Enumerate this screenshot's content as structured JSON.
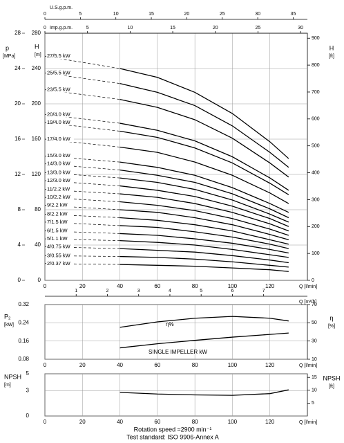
{
  "chart_data": [
    {
      "type": "line",
      "x": [
        0,
        40,
        60,
        80,
        100,
        120,
        130
      ],
      "xlim": [
        0,
        140
      ],
      "xticks": [
        0,
        20,
        40,
        60,
        80,
        100,
        120
      ],
      "x_label": "Q [l/min]",
      "y_label": "H",
      "y_unit": "[m]",
      "ylim": [
        0,
        280
      ],
      "yticks": [
        0,
        40,
        80,
        120,
        160,
        200,
        240,
        280
      ],
      "y2_label": "H",
      "y2_unit": "[ft]",
      "y2lim": [
        0,
        918.6
      ],
      "y2ticks": [
        0,
        100,
        200,
        300,
        400,
        500,
        600,
        700,
        800,
        900
      ],
      "p_axis": {
        "label": "p",
        "unit": "[MPa]",
        "lim": [
          0,
          28
        ],
        "ticks": [
          0,
          4,
          8,
          12,
          16,
          20,
          24,
          28
        ]
      },
      "top_axes": [
        {
          "label": "U.S.g.p.m.",
          "label_position": "left",
          "lim": [
            0,
            37
          ],
          "ticks": [
            0,
            5,
            10,
            15,
            20,
            25,
            30,
            35
          ]
        },
        {
          "label": "Imp.g.p.m.",
          "label_position": "left",
          "lim": [
            0,
            30.8
          ],
          "ticks": [
            0,
            5,
            10,
            15,
            20,
            25,
            30
          ]
        }
      ],
      "grid": true,
      "dashed_first_segment": true,
      "series": [
        {
          "name": "27/5.5 kW",
          "color": "#000",
          "values": [
            254,
            240,
            230,
            213,
            189,
            157,
            138
          ]
        },
        {
          "name": "25/5.5 kW",
          "color": "#000",
          "values": [
            235,
            223,
            213,
            198,
            175,
            145,
            128
          ]
        },
        {
          "name": "23/5.5 kW",
          "color": "#000",
          "values": [
            216,
            205,
            196,
            182,
            161,
            133,
            117
          ]
        },
        {
          "name": "20/4.0 kW",
          "color": "#000",
          "values": [
            188,
            178,
            170,
            158,
            140,
            116,
            102
          ]
        },
        {
          "name": "19/4.0 kW",
          "color": "#000",
          "values": [
            179,
            169,
            162,
            150,
            133,
            110,
            97
          ]
        },
        {
          "name": "17/4.0 kW",
          "color": "#000",
          "values": [
            160,
            151,
            145,
            134,
            119,
            99,
            87
          ]
        },
        {
          "name": "15/3.0 kW",
          "color": "#000",
          "values": [
            141,
            134,
            128,
            119,
            105,
            87,
            77
          ]
        },
        {
          "name": "14/3.0 kW",
          "color": "#000",
          "values": [
            132,
            125,
            119,
            111,
            98,
            81,
            71
          ]
        },
        {
          "name": "13/3.0 kW",
          "color": "#000",
          "values": [
            122,
            116,
            111,
            103,
            91,
            75,
            66
          ]
        },
        {
          "name": "12/3.0 kW",
          "color": "#000",
          "values": [
            113,
            107,
            102,
            95,
            84,
            70,
            61
          ]
        },
        {
          "name": "11/2.2 kW",
          "color": "#000",
          "values": [
            103,
            98,
            94,
            87,
            77,
            64,
            56
          ]
        },
        {
          "name": "10/2.2 kW",
          "color": "#000",
          "values": [
            94,
            89,
            85,
            79,
            70,
            58,
            51
          ]
        },
        {
          "name": "9/2.2 kW",
          "color": "#000",
          "values": [
            85,
            80,
            77,
            71,
            63,
            52,
            46
          ]
        },
        {
          "name": "8/2.2 kW",
          "color": "#000",
          "values": [
            75,
            71,
            68,
            63,
            56,
            46,
            41
          ]
        },
        {
          "name": "7/1.5 kW",
          "color": "#000",
          "values": [
            66,
            62,
            60,
            55,
            49,
            41,
            36
          ]
        },
        {
          "name": "6/1.5 kW",
          "color": "#000",
          "values": [
            56,
            53,
            51,
            47,
            42,
            35,
            31
          ]
        },
        {
          "name": "5/1.1 kW",
          "color": "#000",
          "values": [
            47,
            45,
            43,
            40,
            35,
            29,
            26
          ]
        },
        {
          "name": "4/0.75 kW",
          "color": "#000",
          "values": [
            38,
            36,
            34,
            32,
            28,
            23,
            20
          ]
        },
        {
          "name": "3/0.55 kW",
          "color": "#000",
          "values": [
            28,
            27,
            26,
            24,
            21,
            17,
            15
          ]
        },
        {
          "name": "2/0.37 kW",
          "color": "#000",
          "values": [
            19,
            18,
            17,
            16,
            14,
            12,
            10
          ]
        }
      ]
    },
    {
      "type": "line",
      "x": [
        40,
        60,
        80,
        100,
        120,
        130
      ],
      "xlim": [
        0,
        140
      ],
      "xticks": [
        0,
        20,
        40,
        60,
        80,
        100,
        120
      ],
      "x_label": "Q [l/min]",
      "y_label": "P₂",
      "y_unit": "[kW]",
      "ylim": [
        0.08,
        0.32
      ],
      "yticks": [
        0.08,
        0.16,
        0.24,
        0.32
      ],
      "y2_label": "η",
      "y2_unit": "[%]",
      "y2lim": [
        10,
        70
      ],
      "y2ticks": [
        10,
        30,
        50,
        70
      ],
      "top_axes": [
        {
          "label": "Q [m³/h]",
          "label_position": "right",
          "lim": [
            0,
            8.4
          ],
          "ticks": [
            1,
            2,
            3,
            4,
            5,
            6,
            7
          ]
        }
      ],
      "grid": true,
      "series": [
        {
          "name": "SINGLE IMPELLER kW",
          "color": "#000",
          "values": [
            0.13,
            0.148,
            0.163,
            0.177,
            0.189,
            0.195
          ]
        },
        {
          "name": "η%",
          "color": "#000",
          "axis": "y2",
          "values": [
            45,
            51,
            55,
            57,
            55,
            52
          ]
        }
      ]
    },
    {
      "type": "line",
      "x": [
        40,
        60,
        80,
        100,
        120,
        130
      ],
      "xlim": [
        0,
        140
      ],
      "xticks": [
        0,
        20,
        40,
        60,
        80,
        100,
        120
      ],
      "x_label": "Q [l/min]",
      "y_label": "NPSH",
      "y_unit": "[m]",
      "ylim": [
        0,
        5
      ],
      "yticks": [
        0,
        3,
        5
      ],
      "y2_label": "NPSH",
      "y2_unit": "[ft]",
      "y2lim": [
        0,
        16.4
      ],
      "y2ticks": [
        5,
        10,
        15
      ],
      "grid": true,
      "series": [
        {
          "color": "#000",
          "values": [
            2.8,
            2.6,
            2.5,
            2.45,
            2.65,
            3.1
          ]
        }
      ]
    }
  ],
  "footer": {
    "rotation_speed": "Rotation speed ≈2900 min⁻¹",
    "test_standard": "Test standard: ISO 9906-Annex A"
  }
}
